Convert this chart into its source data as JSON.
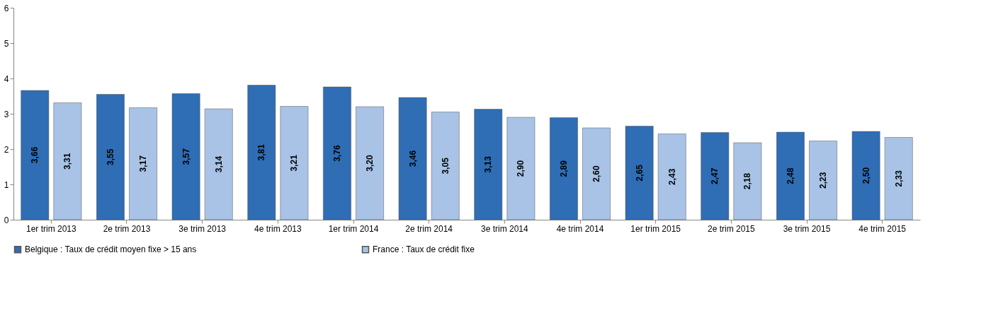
{
  "chart_data": {
    "type": "bar",
    "categories": [
      "1er trim 2013",
      "2e trim 2013",
      "3e trim 2013",
      "4e trim 2013",
      "1er trim 2014",
      "2e trim 2014",
      "3e trim 2014",
      "4e trim 2014",
      "1er trim 2015",
      "2e trim 2015",
      "3e trim 2015",
      "4e trim 2015"
    ],
    "series": [
      {
        "name": "Belgique : Taux de crédit moyen fixe > 15 ans",
        "color": "#2f6db5",
        "values": [
          3.66,
          3.55,
          3.57,
          3.81,
          3.76,
          3.46,
          3.13,
          2.89,
          2.65,
          2.47,
          2.48,
          2.5
        ],
        "value_labels": [
          "3,66",
          "3,55",
          "3,57",
          "3,81",
          "3,76",
          "3,46",
          "3,13",
          "2,89",
          "2,65",
          "2,47",
          "2,48",
          "2,50"
        ]
      },
      {
        "name": "France : Taux de crédit fixe",
        "color": "#a8c3e6",
        "values": [
          3.31,
          3.17,
          3.14,
          3.21,
          3.2,
          3.05,
          2.9,
          2.6,
          2.43,
          2.18,
          2.23,
          2.33
        ],
        "value_labels": [
          "3,31",
          "3,17",
          "3,14",
          "3,21",
          "3,20",
          "3,05",
          "2,90",
          "2,60",
          "2,43",
          "2,18",
          "2,23",
          "2,33"
        ]
      }
    ],
    "ylim": [
      0,
      6
    ],
    "yticks": [
      0,
      1,
      2,
      3,
      4,
      5,
      6
    ],
    "grid": false,
    "legend": "bottom"
  }
}
